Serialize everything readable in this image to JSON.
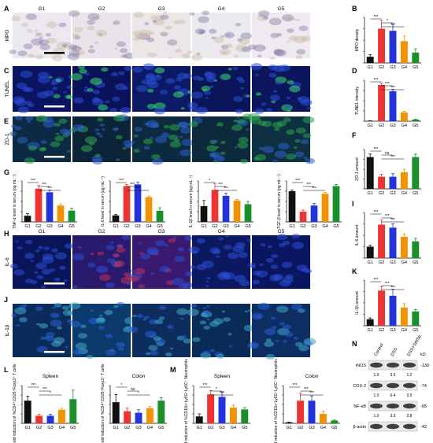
{
  "panel_letters": [
    "A",
    "B",
    "C",
    "D",
    "E",
    "F",
    "G",
    "H",
    "I",
    "J",
    "K",
    "L",
    "M",
    "N"
  ],
  "groups": [
    "G1",
    "G2",
    "G3",
    "G4",
    "G5"
  ],
  "row_labels": {
    "mpo": "MPO",
    "tunel": "TUNEL",
    "zo1": "ZO-1",
    "il6": "IL-6",
    "il1b": "IL-1β"
  },
  "colors": {
    "G1": "#111111",
    "G2": "#ee3333",
    "G3": "#2233dd",
    "G4": "#f39200",
    "G5": "#1a8f2a"
  },
  "images": {
    "mpo": [
      "#ece8ef",
      "#e9e4ea",
      "#ebe6e8",
      "#eceaee",
      "#eeeaef"
    ],
    "tunel": [
      "#0b1460",
      "#0a135a",
      "#0c1a66",
      "#0a1458",
      "#0b165c"
    ],
    "zo1": [
      "#0d2a44",
      "#0c2438",
      "#0d2a40",
      "#0c2a3c",
      "#0e3040"
    ],
    "il6": [
      "#0a1458",
      "#2a1a6e",
      "#3a1a70",
      "#0c1860",
      "#0a1660"
    ],
    "il1b": [
      "#0b2c5a",
      "#0d3a6c",
      "#0c2d5e",
      "#0a2a58",
      "#0c2e62"
    ]
  },
  "chart_data": [
    {
      "id": "B",
      "type": "bar",
      "ylabel": "MPO density",
      "categories": [
        "G1",
        "G2",
        "G3",
        "G4",
        "G5"
      ],
      "values": [
        3,
        16.5,
        15.5,
        10.5,
        5
      ],
      "errors": [
        1,
        4,
        3,
        2.5,
        1.8
      ],
      "ylim": [
        0,
        22
      ],
      "sig": [
        "***",
        "*",
        "***"
      ]
    },
    {
      "id": "D",
      "type": "bar",
      "ylabel": "TUNEL intensity",
      "categories": [
        "G1",
        "G2",
        "G3",
        "G4",
        "G5"
      ],
      "values": [
        1,
        115,
        95,
        28,
        5
      ],
      "errors": [
        0.5,
        6,
        6,
        3,
        1
      ],
      "ylim": [
        0,
        130
      ],
      "sig": [
        "***",
        "***",
        "***"
      ]
    },
    {
      "id": "F",
      "type": "bar",
      "ylabel": "ZO-1 amount",
      "categories": [
        "G1",
        "G2",
        "G3",
        "G4",
        "G5"
      ],
      "values": [
        10.5,
        4,
        4,
        5.5,
        10.5
      ],
      "errors": [
        1,
        0.8,
        1,
        1,
        1
      ],
      "ylim": [
        0,
        13
      ],
      "sig": [
        "***",
        "ns",
        "***"
      ]
    },
    {
      "id": "G1",
      "type": "bar",
      "ylabel": "TNF-α level in serum (pg mL⁻¹)",
      "categories": [
        "G1",
        "G2",
        "G3",
        "G4",
        "G5"
      ],
      "values": [
        12,
        65,
        58,
        32,
        22
      ],
      "errors": [
        4,
        6,
        4,
        3,
        5
      ],
      "ylim": [
        0,
        80
      ],
      "sig": [
        "***",
        "***",
        "***"
      ]
    },
    {
      "id": "G2",
      "type": "bar",
      "ylabel": "IL-6 level in serum (pg mL⁻¹)",
      "categories": [
        "G1",
        "G2",
        "G3",
        "G4",
        "G5"
      ],
      "values": [
        38,
        210,
        220,
        145,
        65
      ],
      "errors": [
        5,
        10,
        12,
        6,
        18
      ],
      "ylim": [
        0,
        240
      ],
      "sig": [
        "***",
        "***",
        "***"
      ]
    },
    {
      "id": "G3",
      "type": "bar",
      "ylabel": "IL-1β level in serum (pg mL⁻¹)",
      "categories": [
        "G1",
        "G2",
        "G3",
        "G4",
        "G5"
      ],
      "values": [
        85,
        172,
        140,
        115,
        95
      ],
      "errors": [
        30,
        35,
        15,
        5,
        15
      ],
      "ylim": [
        0,
        220
      ],
      "sig": [
        "*",
        "***",
        "***"
      ]
    },
    {
      "id": "G4",
      "type": "bar",
      "ylabel": "TGF-β level in serum (pg mL⁻¹)",
      "categories": [
        "G1",
        "G2",
        "G3",
        "G4",
        "G5"
      ],
      "values": [
        600,
        200,
        320,
        550,
        700
      ],
      "errors": [
        20,
        30,
        40,
        30,
        30
      ],
      "ylim": [
        0,
        800
      ],
      "sig": [
        "***",
        "***",
        "***"
      ]
    },
    {
      "id": "I",
      "type": "bar",
      "ylabel": "IL-6 amount",
      "categories": [
        "G1",
        "G2",
        "G3",
        "G4",
        "G5"
      ],
      "values": [
        7.5,
        22,
        20,
        14,
        11
      ],
      "errors": [
        1,
        3,
        2.5,
        2,
        2
      ],
      "ylim": [
        0,
        30
      ],
      "sig": [
        "***",
        "***",
        "***"
      ]
    },
    {
      "id": "K",
      "type": "bar",
      "ylabel": "IL-1β amount",
      "categories": [
        "G1",
        "G2",
        "G3",
        "G4",
        "G5"
      ],
      "values": [
        5,
        27,
        23,
        14,
        11
      ],
      "errors": [
        1,
        3,
        5,
        3,
        1.5
      ],
      "ylim": [
        0,
        35
      ],
      "sig": [
        "***",
        "***",
        "***"
      ]
    },
    {
      "id": "L1",
      "type": "bar",
      "title": "Spleen",
      "ylabel": "Fold induction of %CD4⁺CD25⁺Foxp3⁺ T cells",
      "categories": [
        "G1",
        "G2",
        "G3",
        "G4",
        "G5"
      ],
      "values": [
        15,
        5,
        5,
        9,
        16
      ],
      "errors": [
        3,
        1,
        1,
        1,
        6
      ],
      "ylim": [
        0,
        25
      ],
      "sig": [
        "***",
        "***",
        "*"
      ]
    },
    {
      "id": "L2",
      "type": "bar",
      "title": "Colon",
      "ylabel": "Fold induction of %CD4⁺CD25⁺Foxp3⁺ T cells",
      "categories": [
        "G1",
        "G2",
        "G3",
        "G4",
        "G5"
      ],
      "values": [
        14,
        8,
        7,
        10,
        15
      ],
      "errors": [
        5,
        2,
        2,
        1,
        2
      ],
      "ylim": [
        0,
        25
      ],
      "sig": [
        "*",
        "ns",
        "*"
      ]
    },
    {
      "id": "M1",
      "type": "bar",
      "title": "Spleen",
      "ylabel": "Fold induction of %CD11b⁺Ly6G⁺Ly6C⁺ Neutrophils",
      "categories": [
        "G1",
        "G2",
        "G3",
        "G4",
        "G5"
      ],
      "values": [
        1.1,
        4.6,
        4.2,
        2.5,
        2.2
      ],
      "errors": [
        0.4,
        0.6,
        0.7,
        0.4,
        0.3
      ],
      "ylim": [
        0,
        6
      ],
      "sig": [
        "***",
        "*",
        "***"
      ]
    },
    {
      "id": "M2",
      "type": "bar",
      "title": "Colon",
      "ylabel": "Fold induction of %CD11b⁺Ly6G⁺Ly6C⁺ Neutrophils",
      "categories": [
        "G1",
        "G2",
        "G3",
        "G4",
        "G5"
      ],
      "values": [
        1,
        24,
        24,
        10,
        3
      ],
      "errors": [
        0.4,
        8,
        5,
        3,
        0.5
      ],
      "ylim": [
        0,
        40
      ],
      "sig": [
        "***",
        "***",
        "***"
      ]
    }
  ],
  "blot": {
    "columns": [
      "Control",
      "DSS",
      "DSS+SiNSe"
    ],
    "kd_label": "kD",
    "rows": [
      {
        "name": "iNOS",
        "values": [
          "1.0",
          "3.6",
          "1.2"
        ],
        "kd": "130"
      },
      {
        "name": "COX-2",
        "values": [
          "1.0",
          "6.4",
          "3.5"
        ],
        "kd": "74"
      },
      {
        "name": "NF-κB",
        "values": [
          "1.0",
          "3.3",
          "2.8"
        ],
        "kd": "65"
      },
      {
        "name": "β-actin",
        "values": [
          "",
          "",
          ""
        ],
        "kd": "42"
      }
    ]
  }
}
